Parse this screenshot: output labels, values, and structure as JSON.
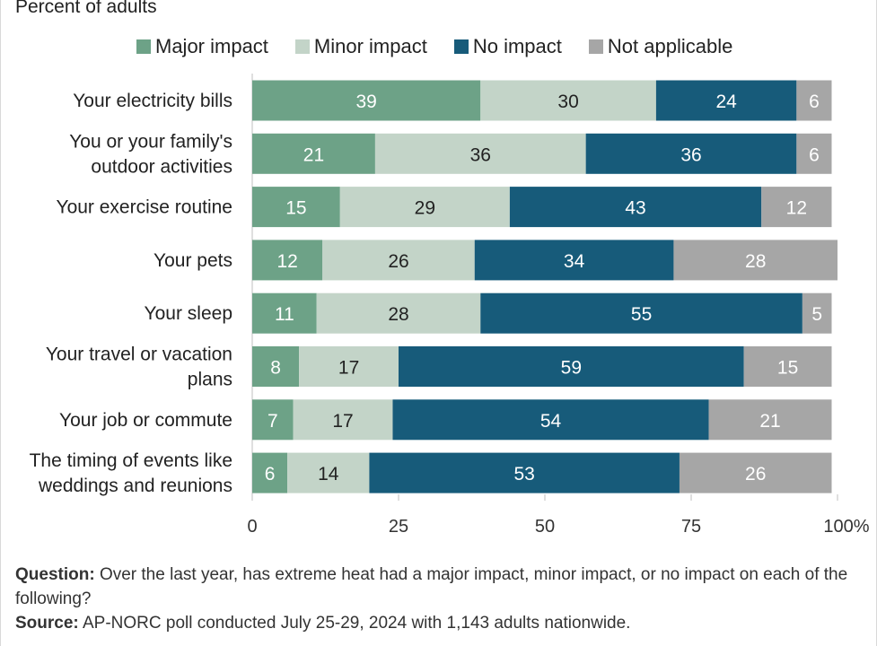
{
  "subtitle": "Percent of adults",
  "legend": [
    {
      "label": "Major impact",
      "color": "#6da287"
    },
    {
      "label": "Minor impact",
      "color": "#c3d4c8"
    },
    {
      "label": "No impact",
      "color": "#175b7a"
    },
    {
      "label": "Not applicable",
      "color": "#a6a6a6"
    }
  ],
  "chart_data": {
    "type": "bar",
    "orientation": "horizontal",
    "stacked": true,
    "categories": [
      [
        "Your electricity bills"
      ],
      [
        "You or your family's",
        "outdoor activities"
      ],
      [
        "Your exercise routine"
      ],
      [
        "Your pets"
      ],
      [
        "Your sleep"
      ],
      [
        "Your travel or vacation",
        "plans"
      ],
      [
        "Your job or commute"
      ],
      [
        "The timing of events like",
        "weddings and reunions"
      ]
    ],
    "series": [
      {
        "name": "Major impact",
        "color": "#6da287",
        "label_color": "#ffffff",
        "values": [
          39,
          21,
          15,
          12,
          11,
          8,
          7,
          6
        ]
      },
      {
        "name": "Minor impact",
        "color": "#c3d4c8",
        "label_color": "#222222",
        "values": [
          30,
          36,
          29,
          26,
          28,
          17,
          17,
          14
        ]
      },
      {
        "name": "No impact",
        "color": "#175b7a",
        "label_color": "#ffffff",
        "values": [
          24,
          36,
          43,
          34,
          55,
          59,
          54,
          53
        ]
      },
      {
        "name": "Not applicable",
        "color": "#a6a6a6",
        "label_color": "#ffffff",
        "values": [
          6,
          6,
          12,
          28,
          5,
          15,
          21,
          26
        ]
      }
    ],
    "xlim": [
      0,
      100
    ],
    "xticks": [
      "0",
      "25",
      "50",
      "75",
      "100%"
    ],
    "xtick_values": [
      0,
      25,
      50,
      75,
      100
    ],
    "legend_position": "top"
  },
  "footer": {
    "question_label": "Question:",
    "question_text": "Over the last year, has extreme heat had a major impact, minor impact, or no impact on each of the following?",
    "source_label": "Source:",
    "source_text": "AP-NORC poll conducted July 25-29, 2024 with 1,143 adults nationwide."
  }
}
